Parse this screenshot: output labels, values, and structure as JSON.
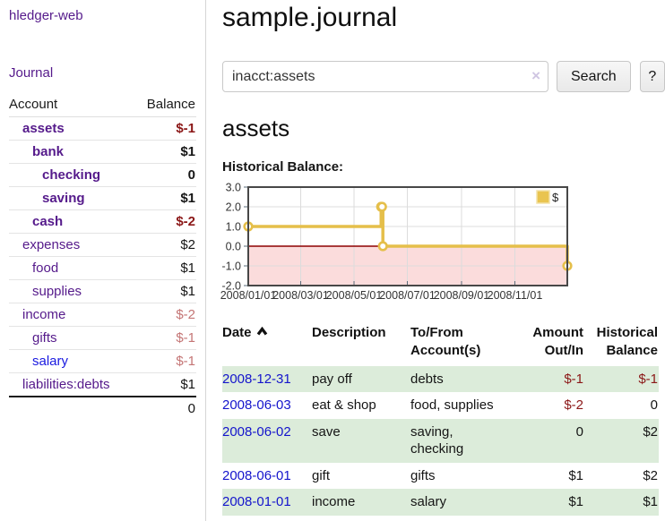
{
  "brand": "hledger-web",
  "nav": {
    "journal": "Journal"
  },
  "page": {
    "title": "sample.journal"
  },
  "sidebar": {
    "account_header": "Account",
    "balance_header": "Balance",
    "accounts": [
      {
        "name": "assets",
        "depth": 1,
        "bold": true,
        "balance": "$-1",
        "neg": "strong",
        "link": "purple"
      },
      {
        "name": "bank",
        "depth": 2,
        "bold": true,
        "balance": "$1",
        "neg": null,
        "link": "purple"
      },
      {
        "name": "checking",
        "depth": 3,
        "bold": true,
        "balance": "0",
        "neg": null,
        "link": "purple"
      },
      {
        "name": "saving",
        "depth": 3,
        "bold": true,
        "balance": "$1",
        "neg": null,
        "link": "purple"
      },
      {
        "name": "cash",
        "depth": 2,
        "bold": true,
        "balance": "$-2",
        "neg": "strong",
        "link": "purple"
      },
      {
        "name": "expenses",
        "depth": 1,
        "bold": false,
        "balance": "$2",
        "neg": null,
        "link": "purple"
      },
      {
        "name": "food",
        "depth": 2,
        "bold": false,
        "balance": "$1",
        "neg": null,
        "link": "purple"
      },
      {
        "name": "supplies",
        "depth": 2,
        "bold": false,
        "balance": "$1",
        "neg": null,
        "link": "purple"
      },
      {
        "name": "income",
        "depth": 1,
        "bold": false,
        "balance": "$-2",
        "neg": "soft",
        "link": "purple"
      },
      {
        "name": "gifts",
        "depth": 2,
        "bold": false,
        "balance": "$-1",
        "neg": "soft",
        "link": "purple"
      },
      {
        "name": "salary",
        "depth": 2,
        "bold": false,
        "balance": "$-1",
        "neg": "soft",
        "link": "blue"
      },
      {
        "name": "liabilities:debts",
        "depth": 1,
        "bold": false,
        "balance": "$1",
        "neg": null,
        "link": "purple"
      }
    ],
    "total": "0"
  },
  "search": {
    "value": "inacct:assets",
    "clear_icon": "×",
    "search_button": "Search",
    "help_button": "?"
  },
  "account_view": {
    "heading": "assets",
    "chart_title": "Historical Balance:"
  },
  "chart_data": {
    "type": "line",
    "step": true,
    "title": "Historical Balance:",
    "x_range": [
      "2008-01-01",
      "2008-12-31"
    ],
    "ylim": [
      -2,
      3
    ],
    "y_ticks": [
      "3.0",
      "2.0",
      "1.0",
      "0.0",
      "-1.0",
      "-2.0"
    ],
    "x_ticks": [
      {
        "date": "2008-01-01",
        "label": "2008/01/01"
      },
      {
        "date": "2008-03-01",
        "label": "2008/03/01"
      },
      {
        "date": "2008-05-01",
        "label": "2008/05/01"
      },
      {
        "date": "2008-07-01",
        "label": "2008/07/01"
      },
      {
        "date": "2008-09-01",
        "label": "2008/09/01"
      },
      {
        "date": "2008-11-01",
        "label": "2008/11/01"
      }
    ],
    "series": [
      {
        "name": "$",
        "points": [
          {
            "date": "2008-01-01",
            "value": 1
          },
          {
            "date": "2008-06-01",
            "value": 2
          },
          {
            "date": "2008-06-02",
            "value": 2
          },
          {
            "date": "2008-06-03",
            "value": 0
          },
          {
            "date": "2008-12-31",
            "value": -1
          }
        ]
      }
    ],
    "legend": [
      {
        "label": "$",
        "color": "#e9c44f"
      }
    ],
    "grid": true,
    "colors": {
      "line": "#e5bf4a",
      "marker_fill": "#ffffff",
      "negative_area": "#fbdcdc",
      "zero_line": "#8e0000",
      "grid": "#dcdcdc",
      "border": "#474747",
      "tick": "#5a6b7a",
      "label": "#333333"
    }
  },
  "register": {
    "headers": {
      "date": "Date",
      "description": "Description",
      "accounts": "To/From Account(s)",
      "amount": "Amount Out/In",
      "balance": "Historical Balance"
    },
    "rows": [
      {
        "date": "2008-12-31",
        "description": "pay off",
        "accounts": "debts",
        "amount": "$-1",
        "balance": "$-1",
        "amount_neg": true,
        "balance_neg": true
      },
      {
        "date": "2008-06-03",
        "description": "eat & shop",
        "accounts": "food, supplies",
        "amount": "$-2",
        "balance": "0",
        "amount_neg": true,
        "balance_neg": false
      },
      {
        "date": "2008-06-02",
        "description": "save",
        "accounts": "saving, checking",
        "amount": "0",
        "balance": "$2",
        "amount_neg": false,
        "balance_neg": false
      },
      {
        "date": "2008-06-01",
        "description": "gift",
        "accounts": "gifts",
        "amount": "$1",
        "balance": "$2",
        "amount_neg": false,
        "balance_neg": false
      },
      {
        "date": "2008-01-01",
        "description": "income",
        "accounts": "salary",
        "amount": "$1",
        "balance": "$1",
        "amount_neg": false,
        "balance_neg": false
      }
    ]
  },
  "colors": {
    "accent_purple": "#551a8b",
    "link_blue": "#1414cc",
    "neg_strong": "#8b1717",
    "neg_soft": "#c47575",
    "row_green": "#dcecda"
  }
}
